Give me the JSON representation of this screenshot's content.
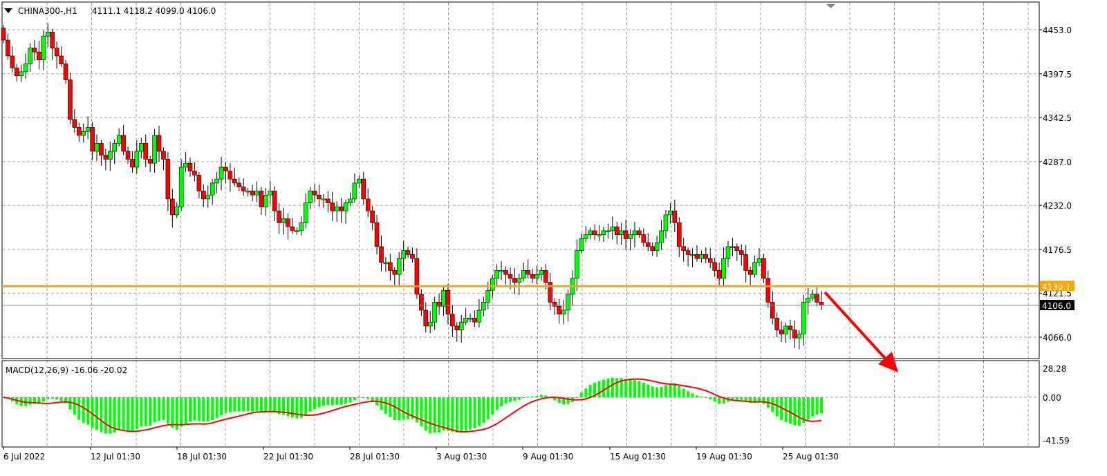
{
  "header": {
    "symbol": "CHINA300-,H1",
    "ohlc": "4111.1 4118.2 4099.0 4106.0"
  },
  "macd_label": "MACD(12,26,9) -16.06 -20.02",
  "colors": {
    "bull": "#00ff00",
    "bear": "#ff0000",
    "level": "#ffa500",
    "signal": "#ff0000",
    "hist": "#00ff00",
    "arrow": "#ff0000"
  },
  "chart_data": {
    "type": "candlestick",
    "title": "CHINA300-,H1",
    "price_ticks": [
      "4453.0",
      "4397.5",
      "4342.5",
      "4287.0",
      "4232.0",
      "4176.5",
      "4121.5",
      "4066.0"
    ],
    "price_range": [
      4032,
      4474
    ],
    "level_line": {
      "value": 4130.1,
      "label": "4130.1"
    },
    "current_price": {
      "value": 4106.0,
      "label": "4106.0"
    },
    "first_open": 4455,
    "closes": [
      4440,
      4420,
      4405,
      4395,
      4400,
      4410,
      4430,
      4425,
      4415,
      4445,
      4450,
      4430,
      4420,
      4410,
      4390,
      4340,
      4330,
      4320,
      4325,
      4330,
      4300,
      4310,
      4295,
      4290,
      4300,
      4310,
      4320,
      4300,
      4290,
      4280,
      4300,
      4310,
      4290,
      4285,
      4320,
      4300,
      4290,
      4240,
      4220,
      4230,
      4280,
      4285,
      4275,
      4270,
      4250,
      4240,
      4245,
      4260,
      4265,
      4280,
      4275,
      4265,
      4260,
      4255,
      4250,
      4250,
      4245,
      4250,
      4230,
      4245,
      4250,
      4225,
      4210,
      4215,
      4205,
      4200,
      4200,
      4210,
      4235,
      4250,
      4245,
      4240,
      4240,
      4235,
      4225,
      4230,
      4225,
      4235,
      4240,
      4260,
      4265,
      4240,
      4225,
      4210,
      4180,
      4160,
      4160,
      4150,
      4145,
      4165,
      4175,
      4170,
      4165,
      4120,
      4100,
      4080,
      4085,
      4110,
      4105,
      4125,
      4095,
      4080,
      4075,
      4085,
      4090,
      4090,
      4085,
      4100,
      4110,
      4125,
      4140,
      4150,
      4150,
      4145,
      4140,
      4135,
      4140,
      4150,
      4145,
      4140,
      4145,
      4150,
      4135,
      4110,
      4105,
      4095,
      4100,
      4120,
      4140,
      4175,
      4190,
      4195,
      4200,
      4195,
      4195,
      4200,
      4200,
      4205,
      4195,
      4200,
      4190,
      4195,
      4200,
      4195,
      4185,
      4180,
      4175,
      4185,
      4200,
      4220,
      4225,
      4210,
      4180,
      4175,
      4170,
      4170,
      4165,
      4170,
      4165,
      4160,
      4150,
      4140,
      4165,
      4180,
      4180,
      4175,
      4170,
      4150,
      4145,
      4160,
      4165,
      4140,
      4110,
      4090,
      4075,
      4070,
      4080,
      4075,
      4065,
      4070,
      4110,
      4115,
      4120,
      4110,
      4106
    ],
    "macd": {
      "params": [
        12,
        26,
        9
      ],
      "ticks": [
        "28.28",
        "0.00",
        "-41.59"
      ],
      "range": [
        -41.59,
        28.28
      ]
    },
    "time_labels": [
      "6 Jul 2022",
      "12 Jul 01:30",
      "18 Jul 01:30",
      "22 Jul 01:30",
      "28 Jul 01:30",
      "3 Aug 01:30",
      "9 Aug 01:30",
      "15 Aug 01:30",
      "19 Aug 01:30",
      "25 Aug 01:30"
    ]
  }
}
